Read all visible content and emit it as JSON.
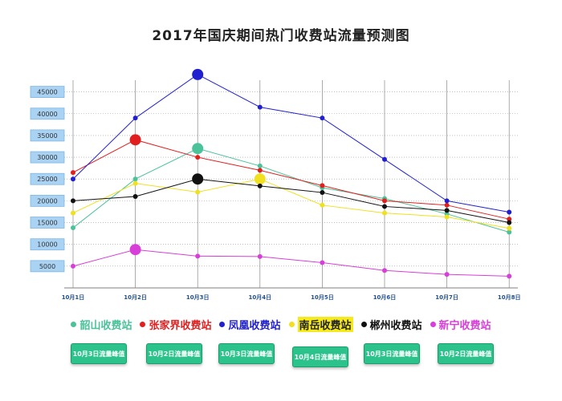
{
  "chart_data": {
    "type": "line",
    "title": "2017年国庆期间热门收费站流量预测图",
    "categories": [
      "10月1日",
      "10月2日",
      "10月3日",
      "10月4日",
      "10月5日",
      "10月6日",
      "10月7日",
      "10月8日"
    ],
    "yticks": [
      5000,
      10000,
      15000,
      20000,
      25000,
      30000,
      35000,
      40000,
      45000
    ],
    "ylim": [
      0,
      47000
    ],
    "grid": true,
    "legend_position": "bottom",
    "series": [
      {
        "name": "韶山收费站",
        "color": "#4ac29a",
        "values": [
          13800,
          25000,
          32000,
          28000,
          23000,
          20500,
          17000,
          12800
        ],
        "peak_index": 2
      },
      {
        "name": "张家界收费站",
        "color": "#e21f1f",
        "values": [
          26500,
          34000,
          30000,
          27000,
          23500,
          20000,
          19000,
          15800
        ],
        "peak_index": 1
      },
      {
        "name": "凤凰收费站",
        "color": "#2020d0",
        "values": [
          25000,
          39000,
          49000,
          41500,
          39000,
          29500,
          20000,
          17400
        ],
        "peak_index": 2
      },
      {
        "name": "南岳收费站",
        "color": "#f0e020",
        "values": [
          17200,
          24000,
          22000,
          25000,
          19000,
          17200,
          16300,
          13700
        ],
        "peak_index": 3
      },
      {
        "name": "郴州收费站",
        "color": "#111111",
        "values": [
          20000,
          21000,
          25000,
          23400,
          21900,
          18700,
          17800,
          15000
        ],
        "peak_index": 2
      },
      {
        "name": "新宁收费站",
        "color": "#d83fd8",
        "values": [
          5000,
          8800,
          7300,
          7200,
          5800,
          4000,
          3100,
          2700
        ],
        "peak_index": 1
      }
    ]
  },
  "peak_buttons": [
    "10月3日流量峰值",
    "10月2日流量峰值",
    "10月3日流量峰值",
    "10月4日流量峰值",
    "10月3日流量峰值",
    "10月2日流量峰值"
  ]
}
